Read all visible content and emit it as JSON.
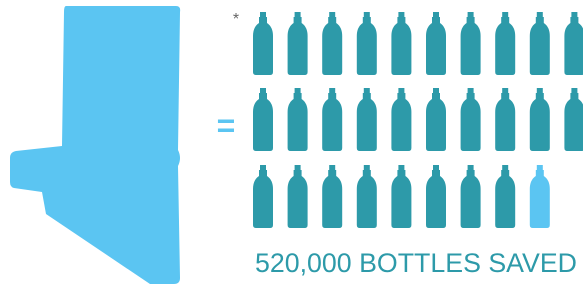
{
  "asterisk": "*",
  "equals": "=",
  "caption": "520,000 BOTTLES SAVED"
}
